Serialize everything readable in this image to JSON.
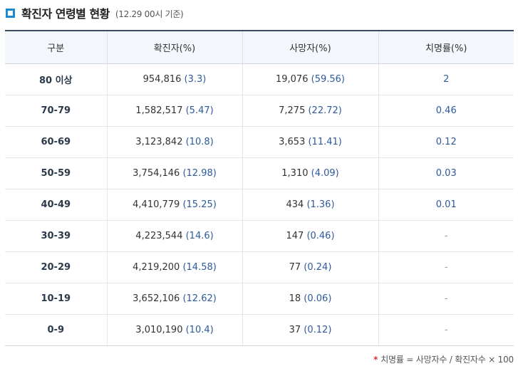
{
  "header": {
    "title": "확진자 연령별 현황",
    "subtitle": "(12.29 00시 기준)"
  },
  "table": {
    "columns": [
      "구분",
      "확진자(%)",
      "사망자(%)",
      "치명률(%)"
    ],
    "rows": [
      {
        "age": "80 이상",
        "cases": "954,816",
        "cases_pct": "(3.3)",
        "deaths": "19,076",
        "deaths_pct": "(59.56)",
        "fatality": "2"
      },
      {
        "age": "70-79",
        "cases": "1,582,517",
        "cases_pct": "(5.47)",
        "deaths": "7,275",
        "deaths_pct": "(22.72)",
        "fatality": "0.46"
      },
      {
        "age": "60-69",
        "cases": "3,123,842",
        "cases_pct": "(10.8)",
        "deaths": "3,653",
        "deaths_pct": "(11.41)",
        "fatality": "0.12"
      },
      {
        "age": "50-59",
        "cases": "3,754,146",
        "cases_pct": "(12.98)",
        "deaths": "1,310",
        "deaths_pct": "(4.09)",
        "fatality": "0.03"
      },
      {
        "age": "40-49",
        "cases": "4,410,779",
        "cases_pct": "(15.25)",
        "deaths": "434",
        "deaths_pct": "(1.36)",
        "fatality": "0.01"
      },
      {
        "age": "30-39",
        "cases": "4,223,544",
        "cases_pct": "(14.6)",
        "deaths": "147",
        "deaths_pct": "(0.46)",
        "fatality": "-"
      },
      {
        "age": "20-29",
        "cases": "4,219,200",
        "cases_pct": "(14.58)",
        "deaths": "77",
        "deaths_pct": "(0.24)",
        "fatality": "-"
      },
      {
        "age": "10-19",
        "cases": "3,652,106",
        "cases_pct": "(12.62)",
        "deaths": "18",
        "deaths_pct": "(0.06)",
        "fatality": "-"
      },
      {
        "age": "0-9",
        "cases": "3,010,190",
        "cases_pct": "(10.4)",
        "deaths": "37",
        "deaths_pct": "(0.12)",
        "fatality": "-"
      }
    ]
  },
  "footnote": {
    "marker": "*",
    "text": "치명률 = 사망자수 / 확진자수 × 100"
  },
  "colors": {
    "accent": "#1b8bd1",
    "header_bg": "#f3f6fa",
    "value_blue": "#2d5a9e",
    "footnote_star": "#e03131"
  }
}
